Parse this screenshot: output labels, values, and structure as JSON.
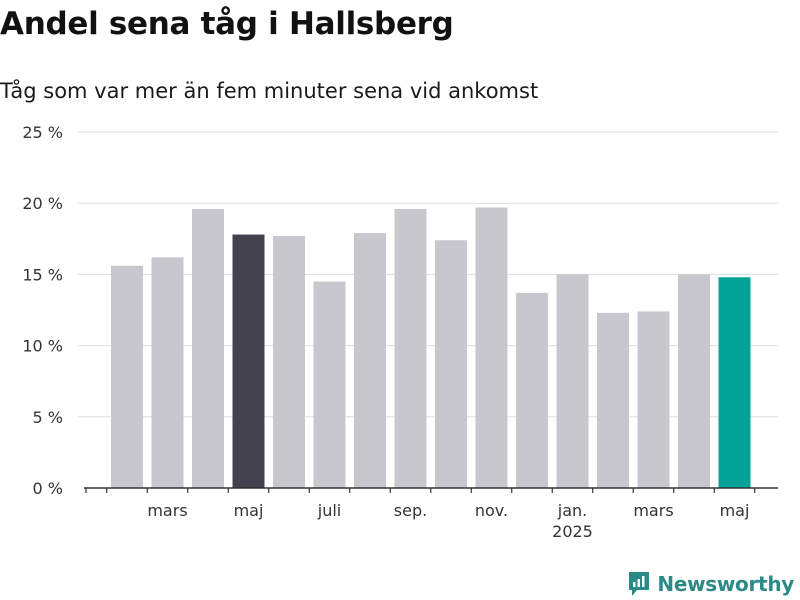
{
  "title": "Andel sena tåg i Hallsberg",
  "subtitle": "Tåg som var mer än fem minuter sena vid ankomst",
  "brand": {
    "name": "Newsworthy",
    "icon": "newsworthy-logo-icon",
    "color": "#2c8a86"
  },
  "colors": {
    "bar": "#c8c7cd",
    "highlight_dark": "#42414d",
    "highlight_accent": "#00a395",
    "grid": "#dddddd",
    "axis": "#333333"
  },
  "chart_data": {
    "type": "bar",
    "title": "Andel sena tåg i Hallsberg",
    "subtitle": "Tåg som var mer än fem minuter sena vid ankomst",
    "xlabel": "",
    "ylabel": "",
    "ylim": [
      0,
      25
    ],
    "y_ticks": [
      0,
      5,
      10,
      15,
      20,
      25
    ],
    "y_tick_labels": [
      "0 %",
      "5 %",
      "10 %",
      "15 %",
      "20 %",
      "25 %"
    ],
    "grid": true,
    "categories": [
      "2024-02",
      "2024-03",
      "2024-04",
      "2024-05",
      "2024-06",
      "2024-07",
      "2024-08",
      "2024-09",
      "2024-10",
      "2024-11",
      "2024-12",
      "2025-01",
      "2025-02",
      "2025-03",
      "2025-04",
      "2025-05"
    ],
    "values": [
      15.6,
      16.2,
      19.6,
      17.8,
      17.7,
      14.5,
      17.9,
      19.6,
      17.4,
      19.7,
      13.7,
      15.0,
      12.3,
      12.4,
      15.0,
      14.8
    ],
    "highlights": {
      "2024-05": "highlight_dark",
      "2025-05": "highlight_accent"
    },
    "x_tick_labels": [
      {
        "at": "2024-03",
        "label": "mars"
      },
      {
        "at": "2024-05",
        "label": "maj"
      },
      {
        "at": "2024-07",
        "label": "juli"
      },
      {
        "at": "2024-09",
        "label": "sep."
      },
      {
        "at": "2024-11",
        "label": "nov."
      },
      {
        "at": "2025-01",
        "label": "jan.",
        "sublabel": "2025"
      },
      {
        "at": "2025-03",
        "label": "mars"
      },
      {
        "at": "2025-05",
        "label": "maj"
      }
    ]
  }
}
